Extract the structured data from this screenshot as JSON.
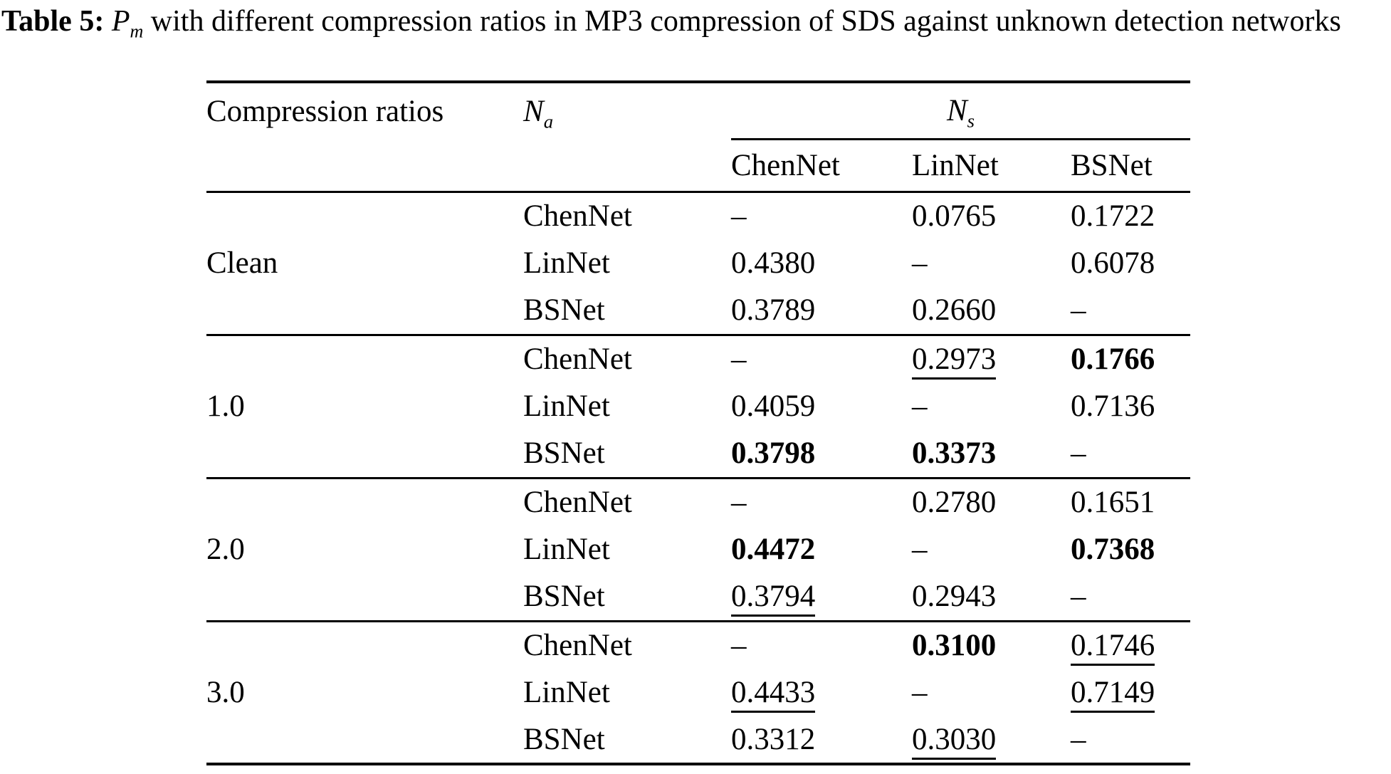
{
  "caption": {
    "label": "Table 5:",
    "math_base": "P",
    "math_sub": "m",
    "rest": "with different compression ratios in MP3 compression of SDS against unknown detection networks"
  },
  "table": {
    "col1_header": "Compression ratios",
    "na_header_base": "N",
    "na_header_sub": "a",
    "ns_header_base": "N",
    "ns_header_sub": "s",
    "subheaders": [
      "ChenNet",
      "LinNet",
      "BSNet"
    ],
    "groups": [
      {
        "ratio": "Clean",
        "rows": [
          {
            "na": "ChenNet",
            "values": [
              {
                "text": "–"
              },
              {
                "text": "0.0765"
              },
              {
                "text": "0.1722"
              }
            ]
          },
          {
            "na": "LinNet",
            "values": [
              {
                "text": "0.4380"
              },
              {
                "text": "–"
              },
              {
                "text": "0.6078"
              }
            ]
          },
          {
            "na": "BSNet",
            "values": [
              {
                "text": "0.3789"
              },
              {
                "text": "0.2660"
              },
              {
                "text": "–"
              }
            ]
          }
        ]
      },
      {
        "ratio": "1.0",
        "rows": [
          {
            "na": "ChenNet",
            "values": [
              {
                "text": "–"
              },
              {
                "text": "0.2973",
                "underline": true
              },
              {
                "text": "0.1766",
                "bold": true
              }
            ]
          },
          {
            "na": "LinNet",
            "values": [
              {
                "text": "0.4059"
              },
              {
                "text": "–"
              },
              {
                "text": "0.7136"
              }
            ]
          },
          {
            "na": "BSNet",
            "values": [
              {
                "text": "0.3798",
                "bold": true
              },
              {
                "text": "0.3373",
                "bold": true
              },
              {
                "text": "–"
              }
            ]
          }
        ]
      },
      {
        "ratio": "2.0",
        "rows": [
          {
            "na": "ChenNet",
            "values": [
              {
                "text": "–"
              },
              {
                "text": "0.2780"
              },
              {
                "text": "0.1651"
              }
            ]
          },
          {
            "na": "LinNet",
            "values": [
              {
                "text": "0.4472",
                "bold": true
              },
              {
                "text": "–"
              },
              {
                "text": "0.7368",
                "bold": true
              }
            ]
          },
          {
            "na": "BSNet",
            "values": [
              {
                "text": "0.3794",
                "underline": true
              },
              {
                "text": "0.2943"
              },
              {
                "text": "–"
              }
            ]
          }
        ]
      },
      {
        "ratio": "3.0",
        "rows": [
          {
            "na": "ChenNet",
            "values": [
              {
                "text": "–"
              },
              {
                "text": "0.3100",
                "bold": true
              },
              {
                "text": "0.1746",
                "underline": true
              }
            ]
          },
          {
            "na": "LinNet",
            "values": [
              {
                "text": "0.4433",
                "underline": true
              },
              {
                "text": "–"
              },
              {
                "text": "0.7149",
                "underline": true
              }
            ]
          },
          {
            "na": "BSNet",
            "values": [
              {
                "text": "0.3312"
              },
              {
                "text": "0.3030",
                "underline": true
              },
              {
                "text": "–"
              }
            ]
          }
        ]
      }
    ]
  }
}
